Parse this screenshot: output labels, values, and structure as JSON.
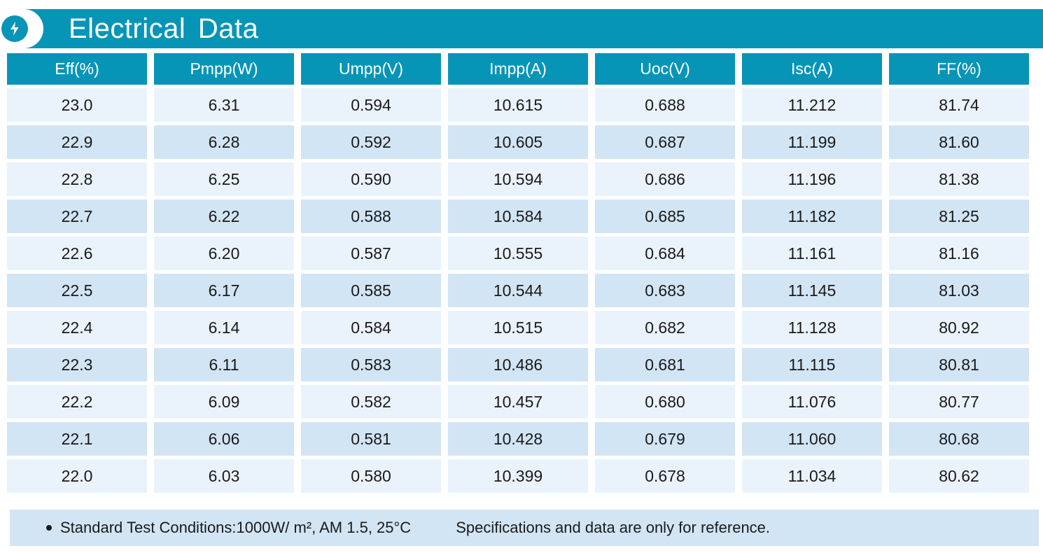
{
  "header": {
    "title": "Electrical Data",
    "icon": "lightning-bolt-icon"
  },
  "colors": {
    "accent": "#0795b7",
    "row_light": "#eaf3fb",
    "row_dark": "#d2e5f4"
  },
  "table": {
    "columns": [
      "Eff(%)",
      "Pmpp(W)",
      "Umpp(V)",
      "Impp(A)",
      "Uoc(V)",
      "Isc(A)",
      "FF(%)"
    ],
    "rows": [
      [
        "23.0",
        "6.31",
        "0.594",
        "10.615",
        "0.688",
        "11.212",
        "81.74"
      ],
      [
        "22.9",
        "6.28",
        "0.592",
        "10.605",
        "0.687",
        "11.199",
        "81.60"
      ],
      [
        "22.8",
        "6.25",
        "0.590",
        "10.594",
        "0.686",
        "11.196",
        "81.38"
      ],
      [
        "22.7",
        "6.22",
        "0.588",
        "10.584",
        "0.685",
        "11.182",
        "81.25"
      ],
      [
        "22.6",
        "6.20",
        "0.587",
        "10.555",
        "0.684",
        "11.161",
        "81.16"
      ],
      [
        "22.5",
        "6.17",
        "0.585",
        "10.544",
        "0.683",
        "11.145",
        "81.03"
      ],
      [
        "22.4",
        "6.14",
        "0.584",
        "10.515",
        "0.682",
        "11.128",
        "80.92"
      ],
      [
        "22.3",
        "6.11",
        "0.583",
        "10.486",
        "0.681",
        "11.115",
        "80.81"
      ],
      [
        "22.2",
        "6.09",
        "0.582",
        "10.457",
        "0.680",
        "11.076",
        "80.77"
      ],
      [
        "22.1",
        "6.06",
        "0.581",
        "10.428",
        "0.679",
        "11.060",
        "80.68"
      ],
      [
        "22.0",
        "6.03",
        "0.580",
        "10.399",
        "0.678",
        "11.034",
        "80.62"
      ]
    ]
  },
  "footer": {
    "conditions": "Standard Test Conditions:1000W/ m², AM 1.5, 25°C",
    "note": "Specifications and data are only for reference."
  }
}
